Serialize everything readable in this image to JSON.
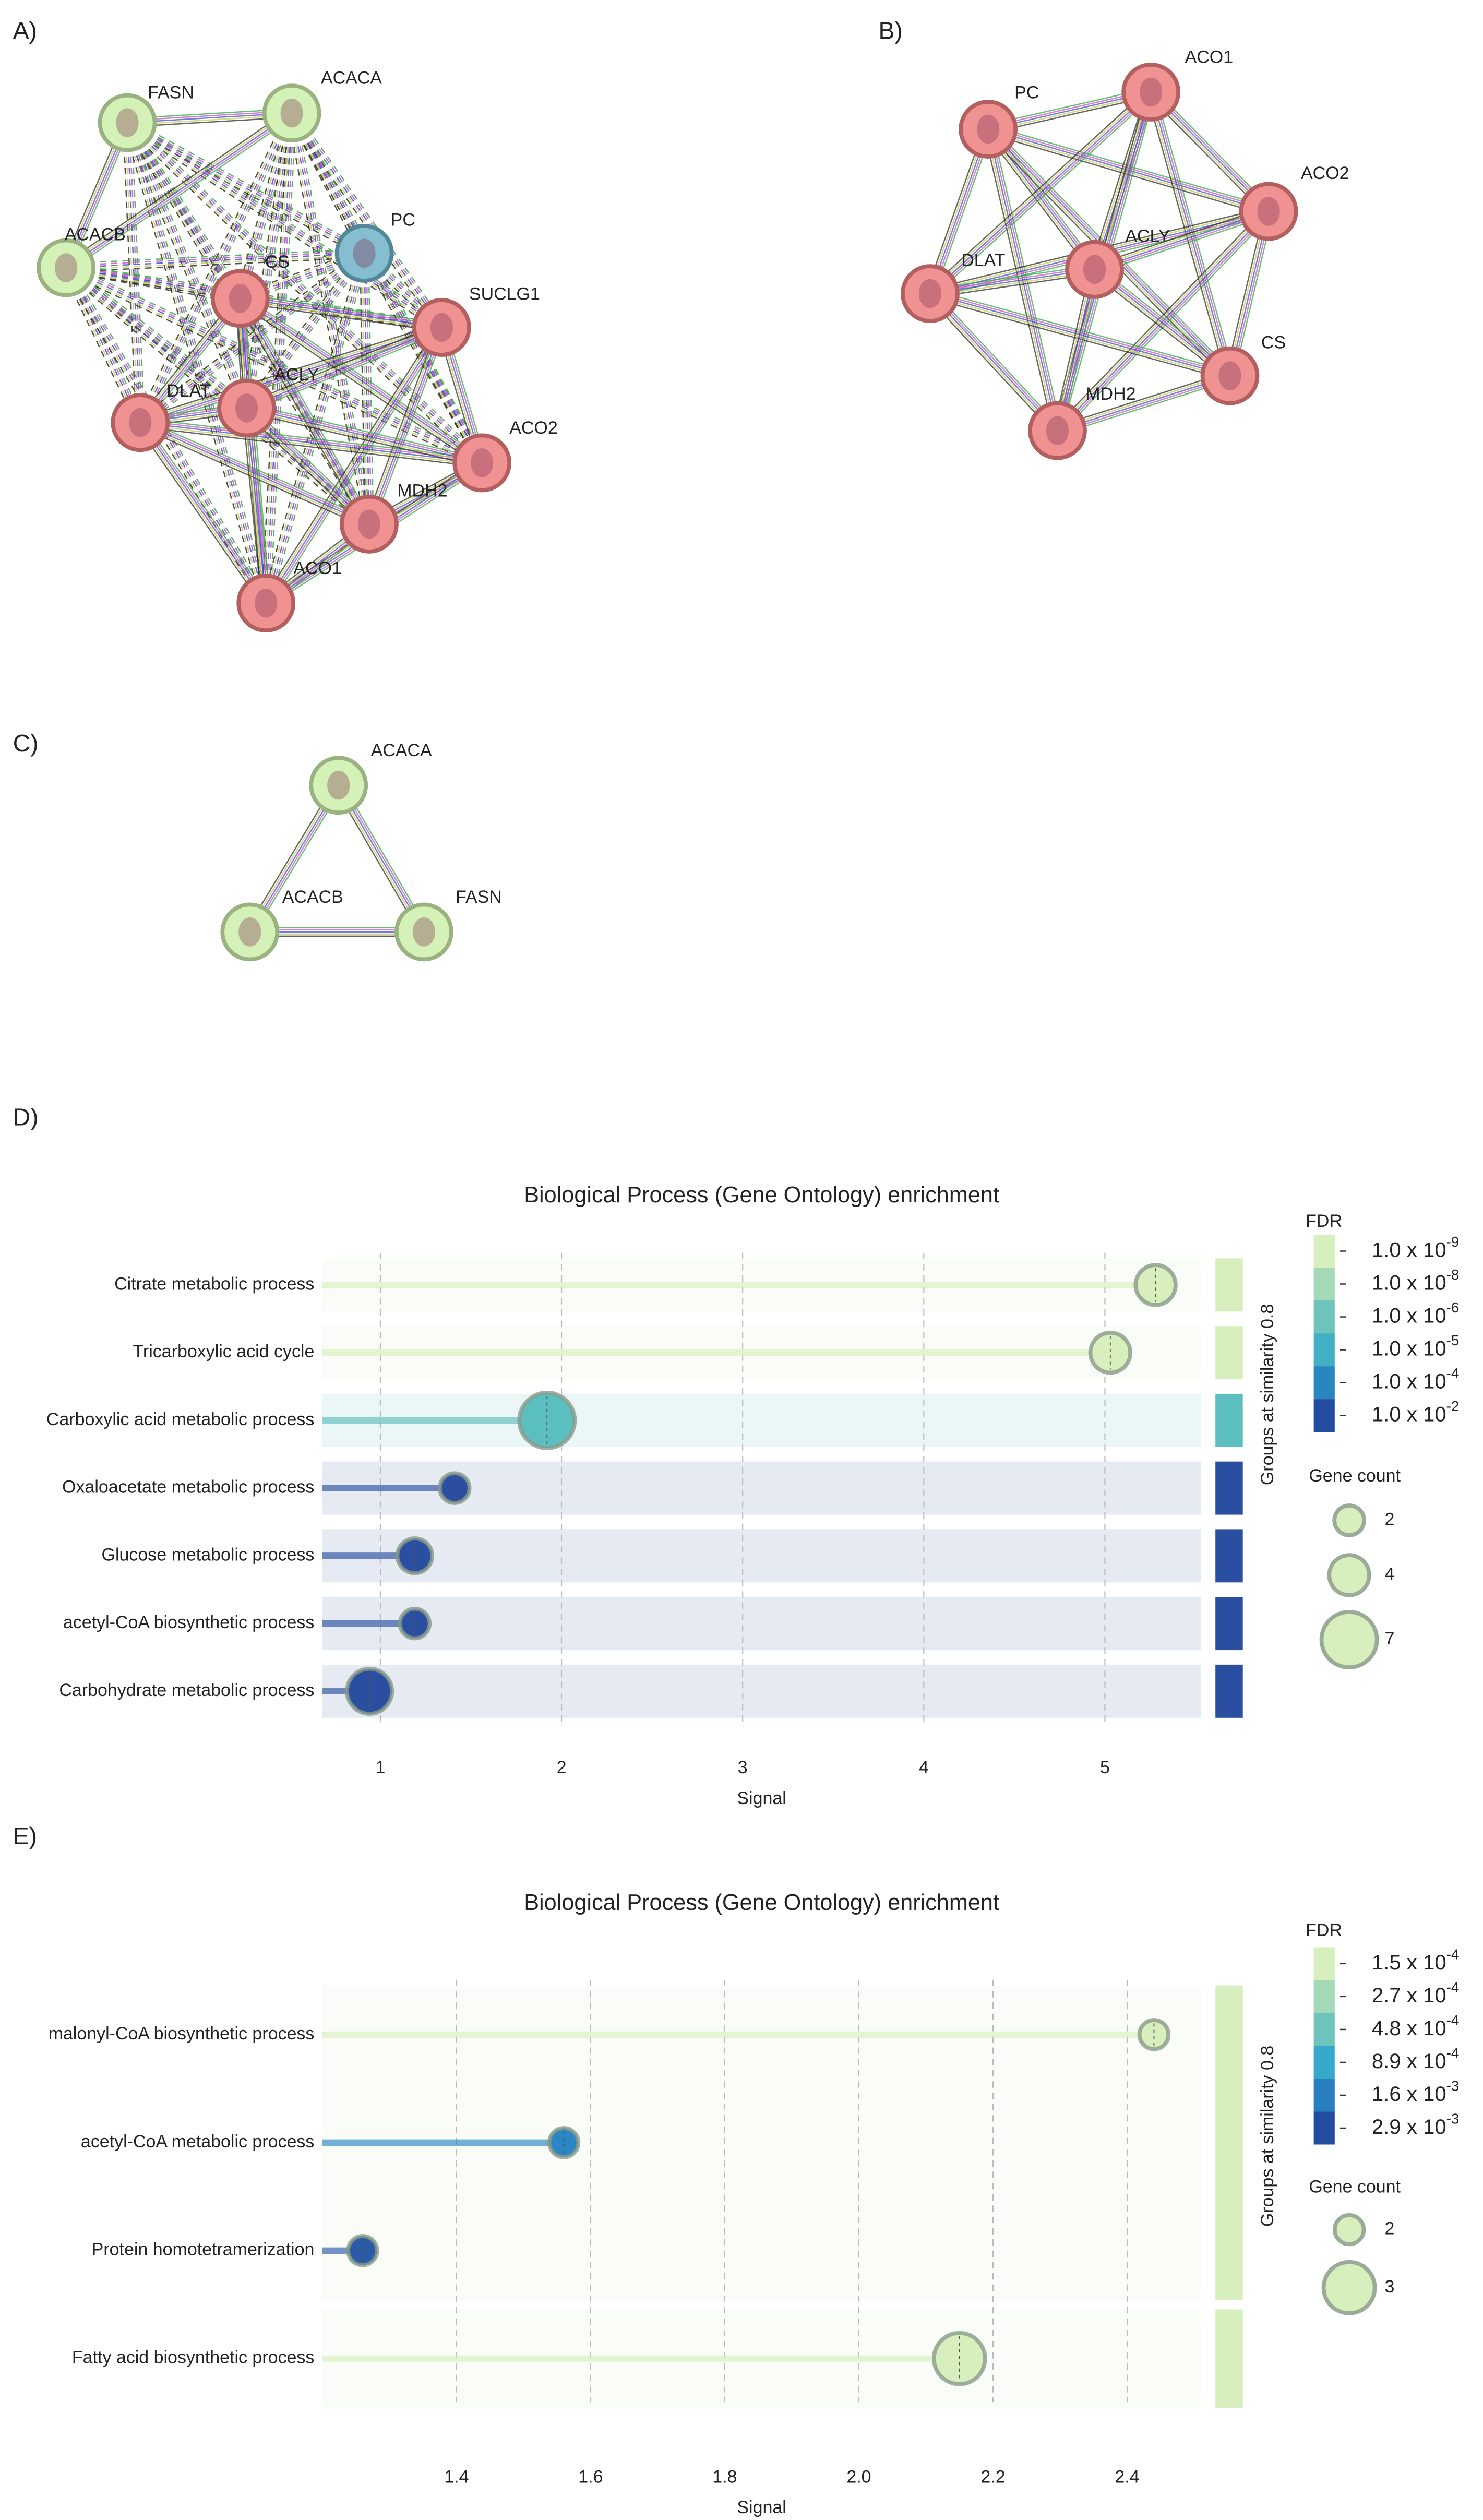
{
  "networks": [
    {
      "panel": "A)",
      "nodes": [
        {
          "label": "FASN",
          "color": "#cdeeaa"
        },
        {
          "label": "ACACA",
          "color": "#cdeeaa"
        },
        {
          "label": "ACACB",
          "color": "#cdeeaa"
        },
        {
          "label": "PC",
          "color": "#6fb3c8"
        },
        {
          "label": "CS",
          "color": "#ef7f7f"
        },
        {
          "label": "SUCLG1",
          "color": "#ef7f7f"
        },
        {
          "label": "DLAT",
          "color": "#ef7f7f"
        },
        {
          "label": "ACLY",
          "color": "#ef7f7f"
        },
        {
          "label": "ACO2",
          "color": "#ef7f7f"
        },
        {
          "label": "MDH2",
          "color": "#ef7f7f"
        },
        {
          "label": "ACO1",
          "color": "#ef7f7f"
        }
      ]
    },
    {
      "panel": "B)",
      "nodes": [
        {
          "label": "PC",
          "color": "#ef7f7f"
        },
        {
          "label": "ACO1",
          "color": "#ef7f7f"
        },
        {
          "label": "ACO2",
          "color": "#ef7f7f"
        },
        {
          "label": "DLAT",
          "color": "#ef7f7f"
        },
        {
          "label": "ACLY",
          "color": "#ef7f7f"
        },
        {
          "label": "CS",
          "color": "#ef7f7f"
        },
        {
          "label": "MDH2",
          "color": "#ef7f7f"
        }
      ]
    },
    {
      "panel": "C)",
      "nodes": [
        {
          "label": "ACACA",
          "color": "#cdeeaa"
        },
        {
          "label": "ACACB",
          "color": "#cdeeaa"
        },
        {
          "label": "FASN",
          "color": "#cdeeaa"
        }
      ]
    }
  ],
  "chart_data": [
    {
      "panel": "D)",
      "type": "lollipop",
      "title": "Biological Process (Gene Ontology) enrichment",
      "categories": [
        "Citrate metabolic process",
        "Tricarboxylic acid cycle",
        "Carboxylic acid metabolic process",
        "Oxaloacetate metabolic process",
        "Glucose metabolic process",
        "acetyl-CoA biosynthetic process",
        "Carbohydrate metabolic process"
      ],
      "values": [
        5.28,
        5.03,
        1.92,
        1.41,
        1.19,
        1.19,
        0.94
      ],
      "gene_counts": [
        4,
        4,
        7,
        2,
        3,
        2,
        5
      ],
      "colors": [
        "#d7efbd",
        "#d7efbd",
        "#5cbfbf",
        "#2a4fa0",
        "#2a4fa0",
        "#2a4fa0",
        "#2a4fa0"
      ],
      "xlim": [
        0.68,
        5.53
      ],
      "xticks": [
        1,
        2,
        3,
        4,
        5
      ],
      "grid": true,
      "xlabel": "Signal",
      "group_label": "Groups at similarity 0.8",
      "fdr_title": "FDR",
      "fdr_legend": [
        {
          "color": "#d7efbd",
          "label": {
            "base": "1.0 x 10",
            "exp": "-9"
          }
        },
        {
          "color": "#a3d9b7",
          "label": {
            "base": "1.0 x 10",
            "exp": "-8"
          }
        },
        {
          "color": "#6ec4bd",
          "label": {
            "base": "1.0 x 10",
            "exp": "-6"
          }
        },
        {
          "color": "#41b0c4",
          "label": {
            "base": "1.0 x 10",
            "exp": "-5"
          }
        },
        {
          "color": "#2a86bf",
          "label": {
            "base": "1.0 x 10",
            "exp": "-4"
          }
        },
        {
          "color": "#234da0",
          "label": {
            "base": "1.0 x 10",
            "exp": "-2"
          }
        }
      ],
      "size_title": "Gene count",
      "size_legend": [
        2,
        4,
        7
      ]
    },
    {
      "panel": "E)",
      "type": "lollipop",
      "title": "Biological Process (Gene Ontology) enrichment",
      "categories": [
        "malonyl-CoA biosynthetic process",
        "acetyl-CoA metabolic process",
        "Protein homotetramerization",
        "Fatty acid biosynthetic process"
      ],
      "values": [
        2.44,
        1.56,
        1.26,
        2.15
      ],
      "gene_counts": [
        2,
        2,
        2,
        3
      ],
      "colors": [
        "#d7efbd",
        "#2a86c4",
        "#2a5aa8",
        "#d7efbd"
      ],
      "xlim": [
        1.2,
        2.51
      ],
      "xticks": [
        1.4,
        1.6,
        1.8,
        {
          "value": 2,
          "label": "2.0"
        },
        2.2,
        2.4
      ],
      "grid": true,
      "xlabel": "Signal",
      "group_label": "Groups at similarity 0.8",
      "fdr_title": "FDR",
      "fdr_legend": [
        {
          "color": "#d7efbd",
          "label": {
            "base": "1.5 x 10",
            "exp": "-4"
          }
        },
        {
          "color": "#a3d9b7",
          "label": {
            "base": "2.7 x 10",
            "exp": "-4"
          }
        },
        {
          "color": "#6ec4bd",
          "label": {
            "base": "4.8 x 10",
            "exp": "-4"
          }
        },
        {
          "color": "#36a8c9",
          "label": {
            "base": "8.9 x 10",
            "exp": "-4"
          }
        },
        {
          "color": "#2a7fbf",
          "label": {
            "base": "1.6 x 10",
            "exp": "-3"
          }
        },
        {
          "color": "#234da0",
          "label": {
            "base": "2.9 x 10",
            "exp": "-3"
          }
        }
      ],
      "size_title": "Gene count",
      "size_legend": [
        2,
        3
      ]
    }
  ]
}
